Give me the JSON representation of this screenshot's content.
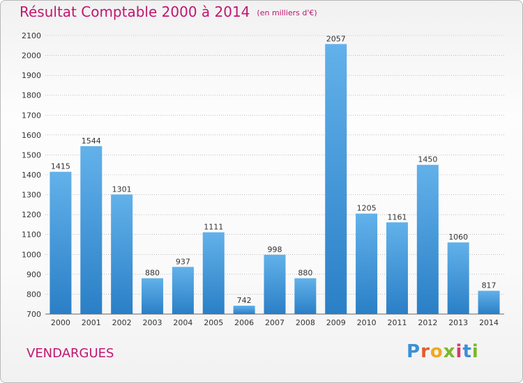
{
  "header": {
    "title": "Résultat Comptable 2000 à 2014",
    "unit": "(en milliers d'€)"
  },
  "footer": {
    "city": "VENDARGUES",
    "logo": "Proxiti"
  },
  "colors": {
    "title": "#c0166f",
    "bar_light": "#62b1ea",
    "bar_dark": "#2a7fc6",
    "grid": "#9a9a9a"
  },
  "chart_data": {
    "type": "bar",
    "title": "Résultat Comptable 2000 à 2014",
    "subtitle": "(en milliers d'€)",
    "xlabel": "",
    "ylabel": "",
    "categories": [
      "2000",
      "2001",
      "2002",
      "2003",
      "2004",
      "2005",
      "2006",
      "2007",
      "2008",
      "2009",
      "2010",
      "2011",
      "2012",
      "2013",
      "2014"
    ],
    "values": [
      1415,
      1544,
      1301,
      880,
      937,
      1111,
      742,
      998,
      880,
      2057,
      1205,
      1161,
      1450,
      1060,
      817
    ],
    "ylim": [
      700,
      2100
    ],
    "yticks": [
      700,
      800,
      900,
      1000,
      1100,
      1200,
      1300,
      1400,
      1500,
      1600,
      1700,
      1800,
      1900,
      2000,
      2100
    ],
    "grid": true,
    "data_labels": true
  }
}
